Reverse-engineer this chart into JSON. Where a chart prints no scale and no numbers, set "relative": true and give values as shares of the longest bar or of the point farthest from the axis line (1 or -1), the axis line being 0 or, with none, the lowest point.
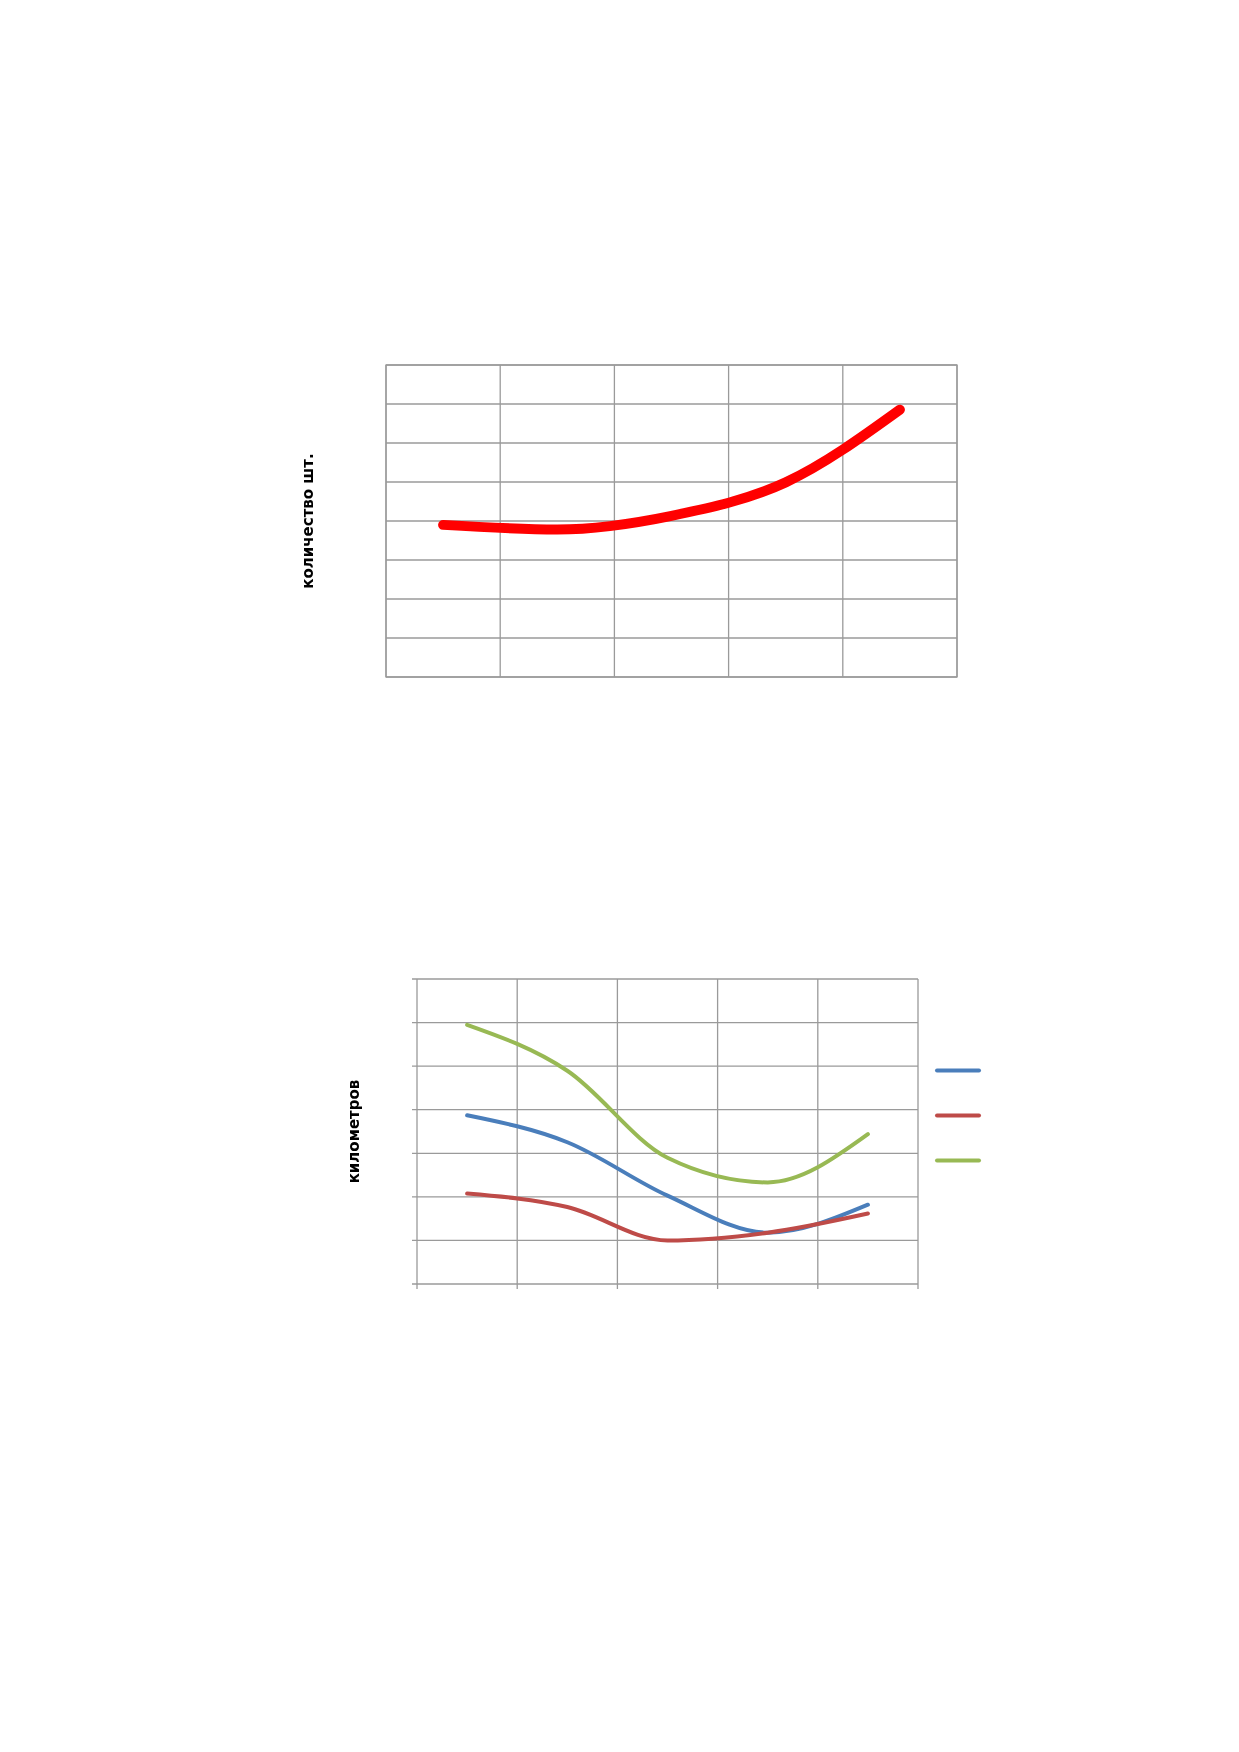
{
  "chart_data": [
    {
      "type": "line",
      "ylabel": "количество шт.",
      "categories": [
        null,
        null,
        null,
        null,
        null
      ],
      "relative": true,
      "grid": true,
      "marker": "none",
      "line_style": "solid",
      "series": [
        {
          "color": "#ff0000",
          "values": [
            0.569,
            0.552,
            0.603,
            0.728,
            1
          ]
        }
      ]
    },
    {
      "type": "line",
      "ylabel": "километров",
      "categories": [
        null,
        null,
        null,
        null,
        null
      ],
      "relative": true,
      "grid": true,
      "marker": "none",
      "line_style": "solid",
      "series": [
        {
          "color": "#4a7ebb",
          "values": [
            0.651,
            0.547,
            0.341,
            0.198,
            0.306
          ]
        },
        {
          "color": "#be4b48",
          "values": [
            0.349,
            0.297,
            0.168,
            0.198,
            0.272
          ]
        },
        {
          "color": "#98b954",
          "values": [
            1,
            0.823,
            0.487,
            0.392,
            0.578
          ]
        }
      ]
    }
  ]
}
